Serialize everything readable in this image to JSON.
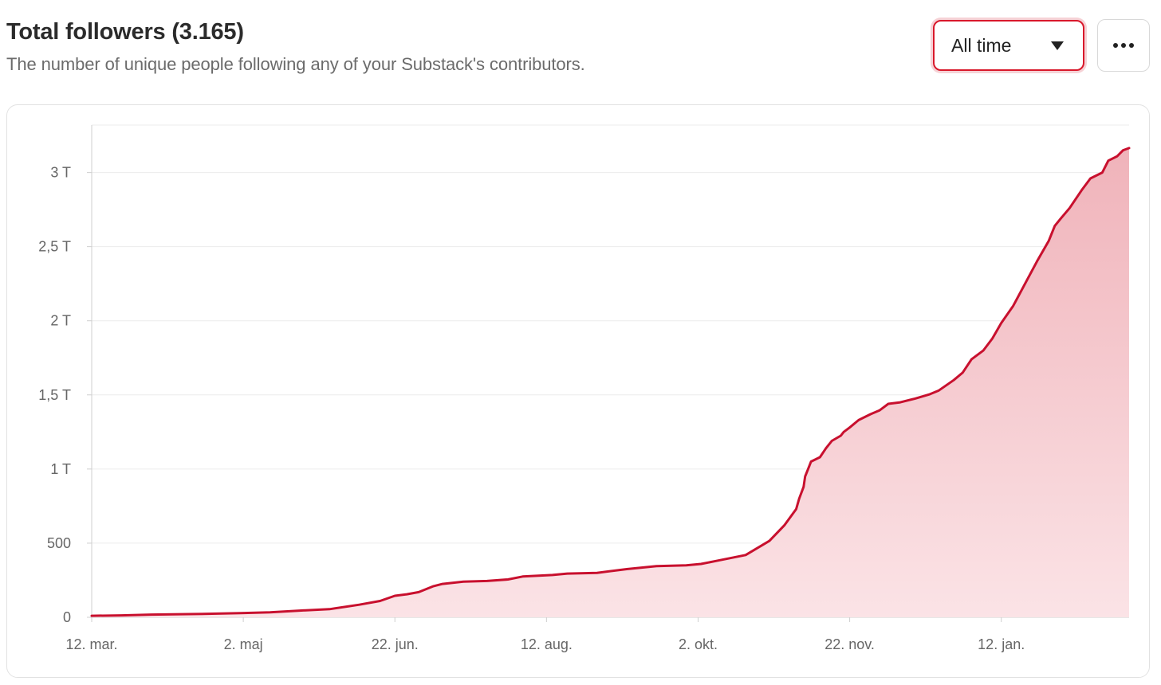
{
  "header": {
    "title": "Total followers (3.165)",
    "subtitle": "The number of unique people following any of your Substack's contributors."
  },
  "controls": {
    "range_label": "All time",
    "more_icon": "more-horizontal-icon"
  },
  "colors": {
    "line": "#c8102e",
    "area_top": "#f0b3ba",
    "area_bottom": "#fbe3e6",
    "grid": "#ececec",
    "axis": "#cfcfcf",
    "tick_text": "#666666"
  },
  "chart_data": {
    "type": "area",
    "title": "Total followers (3.165)",
    "xlabel": "",
    "ylabel": "",
    "x_tick_labels": [
      "12. mar.",
      "2. maj",
      "22. jun.",
      "12. aug.",
      "2. okt.",
      "22. nov.",
      "12. jan."
    ],
    "x_tick_days": [
      0,
      51,
      102,
      153,
      204,
      255,
      306
    ],
    "y_ticks": [
      0,
      500,
      1000,
      1500,
      2000,
      2500,
      3000
    ],
    "y_tick_labels": [
      "0",
      "500",
      "1 T",
      "1,5 T",
      "2 T",
      "2,5 T",
      "3 T"
    ],
    "xlim": [
      0,
      349
    ],
    "ylim": [
      0,
      3320
    ],
    "grid": true,
    "legend": "none",
    "series": [
      {
        "x": [
          0,
          10,
          20,
          35,
          50,
          60,
          70,
          80,
          90,
          97,
          102,
          106,
          110,
          115,
          118,
          125,
          133,
          140,
          145,
          155,
          160,
          170,
          180,
          190,
          200,
          205,
          210,
          220,
          228,
          233,
          237,
          238,
          239.5,
          240,
          241,
          242,
          245,
          247,
          249,
          252,
          253,
          255,
          258,
          262,
          265,
          268,
          272,
          277,
          282,
          285,
          290,
          293,
          296,
          300,
          303,
          306,
          310,
          314,
          318,
          322,
          324,
          326,
          329,
          333,
          336,
          340,
          342,
          345,
          347,
          349
        ],
        "y": [
          10,
          13,
          18,
          22,
          28,
          34,
          45,
          55,
          85,
          110,
          145,
          155,
          170,
          210,
          225,
          240,
          245,
          255,
          275,
          285,
          295,
          300,
          325,
          345,
          350,
          360,
          380,
          420,
          515,
          620,
          730,
          800,
          880,
          950,
          1000,
          1050,
          1080,
          1140,
          1190,
          1225,
          1250,
          1280,
          1330,
          1370,
          1395,
          1440,
          1450,
          1475,
          1505,
          1530,
          1600,
          1650,
          1740,
          1800,
          1880,
          1985,
          2100,
          2250,
          2400,
          2540,
          2640,
          2690,
          2760,
          2880,
          2960,
          3000,
          3080,
          3110,
          3150,
          3165
        ]
      }
    ]
  }
}
